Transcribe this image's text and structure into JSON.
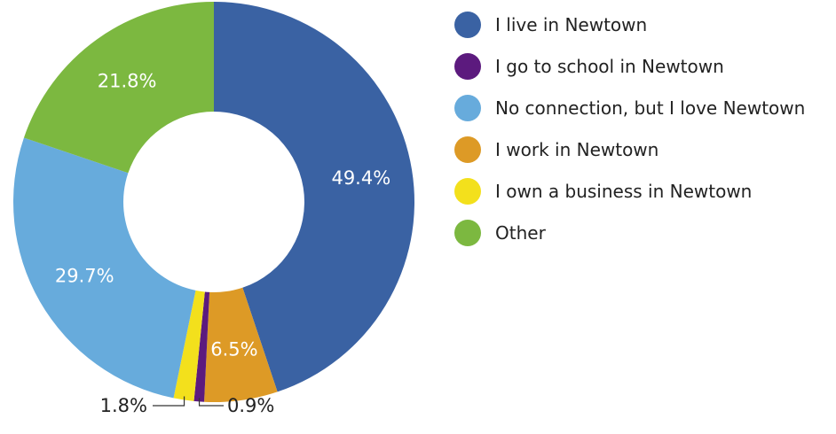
{
  "chart_data": {
    "type": "pie",
    "title": "",
    "categories": [
      "I live in Newtown",
      "I go to school in Newtown",
      "No connection, but I love Newtown",
      "I work in Newtown",
      "I own a business in Newtown",
      "Other"
    ],
    "values": [
      49.4,
      0.9,
      29.7,
      6.5,
      1.8,
      21.8
    ],
    "slice_order": [
      0,
      3,
      1,
      4,
      2,
      5
    ],
    "labels": {
      "I live in Newtown": "49.4%",
      "I go to school in Newtown": "0.9%",
      "No connection, but I love Newtown": "29.7%",
      "I work in Newtown": "6.5%",
      "I own a business in Newtown": "1.8%",
      "Other": "21.8%"
    },
    "colors": {
      "I live in Newtown": "#3a62a3",
      "I go to school in Newtown": "#5c1a7e",
      "No connection, but I love Newtown": "#67abdc",
      "I work in Newtown": "#dd9a26",
      "I own a business in Newtown": "#f3e01c",
      "Other": "#7cb840"
    },
    "donut": true,
    "start_angle": "12 o'clock",
    "direction": "clockwise",
    "legend_position": "right"
  }
}
